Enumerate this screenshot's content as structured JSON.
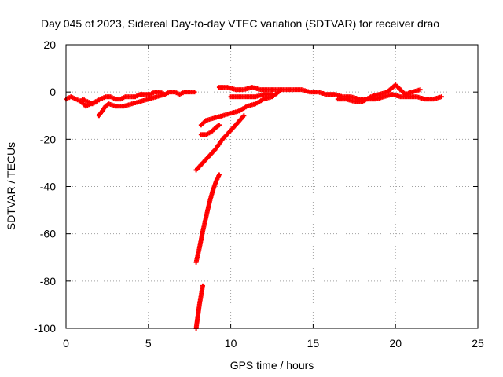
{
  "chart_data": {
    "type": "scatter",
    "title": "Day 045 of 2023, Sidereal Day-to-day VTEC variation (SDTVAR) for receiver drao",
    "xlabel": "GPS time / hours",
    "ylabel": "SDTVAR / TECUs",
    "xlim": [
      0,
      25
    ],
    "ylim": [
      -100,
      20
    ],
    "xticks": [
      "0",
      "5",
      "10",
      "15",
      "20",
      "25"
    ],
    "yticks": [
      "20",
      "0",
      "-20",
      "-40",
      "-60",
      "-80",
      "-100"
    ],
    "grid": true,
    "legend": "none",
    "marker": "+",
    "color": "#ff0000",
    "series": [
      {
        "x": [
          0.0,
          0.3,
          0.6,
          0.9,
          1.2,
          1.5,
          1.8,
          2.1,
          2.4,
          2.7,
          3.0,
          3.3,
          3.6,
          3.9,
          4.2,
          4.5,
          4.8,
          5.1,
          5.4,
          5.7,
          6.0,
          6.3,
          6.6,
          6.9,
          7.2,
          7.5,
          7.8
        ],
        "y": [
          -3,
          -2,
          -3,
          -4,
          -6,
          -5,
          -4,
          -3,
          -2,
          -2,
          -3,
          -3,
          -2,
          -2,
          -2,
          -1,
          -1,
          -1,
          0,
          0,
          -1,
          0,
          0,
          -1,
          0,
          0,
          0
        ]
      },
      {
        "x": [
          1.0,
          1.3,
          1.6,
          1.9
        ],
        "y": [
          -3,
          -4,
          -5,
          -4
        ]
      },
      {
        "x": [
          2.0,
          2.2,
          2.4,
          2.6,
          3.0,
          3.5,
          4.0,
          4.5,
          5.0,
          5.5,
          6.0
        ],
        "y": [
          -10,
          -8,
          -6,
          -5,
          -6,
          -6,
          -5,
          -4,
          -3,
          -2,
          -1
        ]
      },
      {
        "x": [
          9.3,
          9.8,
          10.3,
          10.8,
          11.3,
          11.8,
          12.3,
          12.8,
          13.3,
          13.8,
          14.3,
          14.8,
          15.3,
          15.8,
          16.3,
          16.8,
          17.3,
          17.8,
          18.3,
          18.8,
          19.3,
          19.8,
          20.3,
          20.8,
          21.3,
          21.8,
          22.3,
          22.8
        ],
        "y": [
          2,
          2,
          1,
          1,
          2,
          1,
          1,
          1,
          1,
          1,
          1,
          0,
          0,
          -1,
          -1,
          -2,
          -2,
          -3,
          -3,
          -3,
          -2,
          -1,
          -2,
          -2,
          -2,
          -3,
          -3,
          -2
        ]
      },
      {
        "x": [
          16.5,
          17.0,
          17.5,
          18.0,
          18.5,
          19.0,
          19.5,
          20.0,
          20.3,
          20.6,
          21.0,
          21.5
        ],
        "y": [
          -3,
          -3,
          -4,
          -4,
          -2,
          -1,
          0,
          3,
          1,
          -1,
          0,
          1
        ]
      },
      {
        "x": [
          10.0,
          10.5,
          11.0,
          11.5,
          12.0,
          12.5
        ],
        "y": [
          -2,
          -2,
          -2,
          -2,
          -1,
          -1
        ]
      },
      {
        "x": [
          8.2,
          8.5,
          9.0,
          9.5,
          10.0,
          10.5,
          11.0,
          11.5,
          12.0,
          12.5,
          12.9
        ],
        "y": [
          -14,
          -12,
          -11,
          -10,
          -9,
          -8,
          -6,
          -5,
          -3,
          -2,
          0
        ]
      },
      {
        "x": [
          8.2,
          8.5,
          8.8,
          9.1,
          9.3
        ],
        "y": [
          -18,
          -18,
          -17,
          -15,
          -14
        ]
      },
      {
        "x": [
          7.9,
          8.3,
          8.7,
          9.1,
          9.5,
          9.9,
          10.3,
          10.8
        ],
        "y": [
          -33,
          -30,
          -27,
          -24,
          -20,
          -17,
          -14,
          -10
        ]
      },
      {
        "x": [
          7.9,
          8.1,
          8.3,
          8.5,
          8.7,
          8.9,
          9.1,
          9.3
        ],
        "y": [
          -72,
          -66,
          -59,
          -53,
          -47,
          -42,
          -38,
          -35
        ]
      },
      {
        "x": [
          7.9,
          8.0,
          8.1,
          8.2,
          8.3
        ],
        "y": [
          -100,
          -95,
          -90,
          -86,
          -82
        ]
      }
    ]
  }
}
